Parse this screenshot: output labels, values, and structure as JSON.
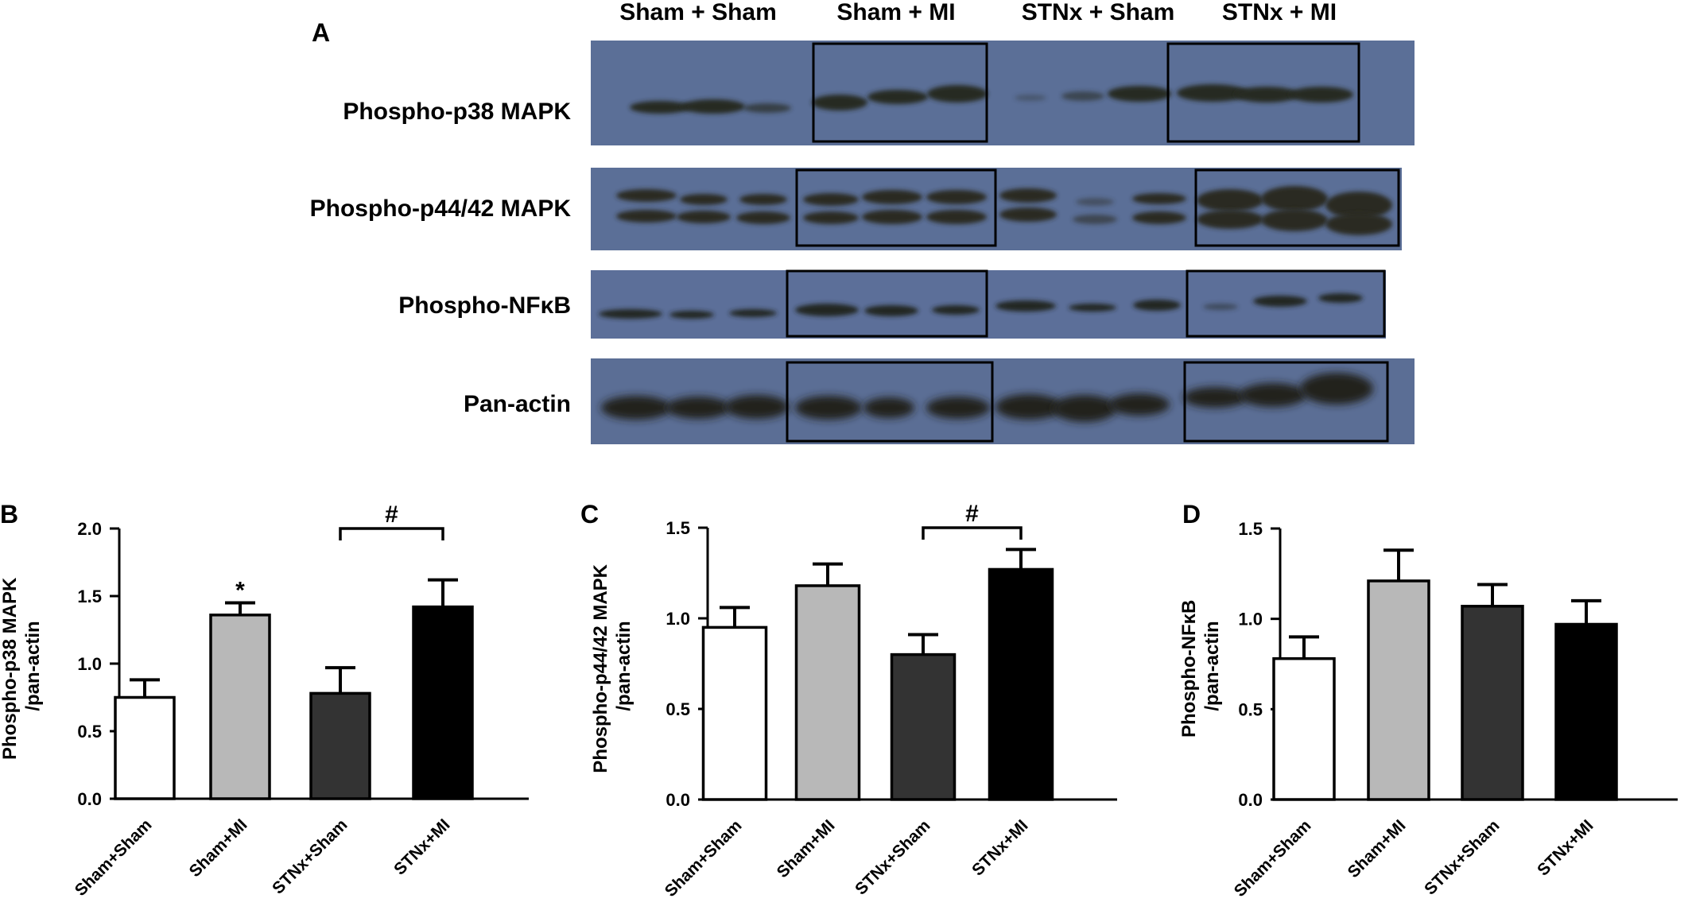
{
  "panel_a": {
    "letter": "A",
    "groups": [
      "Sham + Sham",
      "Sham + MI",
      "STNx + Sham",
      "STNx + MI"
    ],
    "rows": [
      {
        "label": "Phospho-p38 MAPK"
      },
      {
        "label": "Phospho-p44/42 MAPK"
      },
      {
        "label": "Phospho-NFκB"
      },
      {
        "label": "Pan-actin"
      }
    ],
    "colors": {
      "membrane": "#5b6f97",
      "band": "#262a22"
    }
  },
  "chart_data": [
    {
      "panel": "B",
      "type": "bar",
      "categories": [
        "Sham+Sham",
        "Sham+MI",
        "STNx+Sham",
        "STNx+MI"
      ],
      "values": [
        0.75,
        1.36,
        0.78,
        1.42
      ],
      "errors": [
        0.13,
        0.09,
        0.19,
        0.2
      ],
      "colors": [
        "#ffffff",
        "#b8b8b8",
        "#333333",
        "#000000"
      ],
      "ylabel": "Phospho-p38 MAPK\n/pan-actin",
      "ylim": [
        0,
        2.0
      ],
      "yticks": [
        "0.0",
        "0.5",
        "1.0",
        "1.5",
        "2.0"
      ],
      "annotations": {
        "star": {
          "category": 1,
          "text": "*"
        },
        "bracket": {
          "from": 2,
          "to": 3,
          "text": "#"
        }
      }
    },
    {
      "panel": "C",
      "type": "bar",
      "categories": [
        "Sham+Sham",
        "Sham+MI",
        "STNx+Sham",
        "STNx+MI"
      ],
      "values": [
        0.95,
        1.18,
        0.8,
        1.27
      ],
      "errors": [
        0.11,
        0.12,
        0.11,
        0.11
      ],
      "colors": [
        "#ffffff",
        "#b8b8b8",
        "#333333",
        "#000000"
      ],
      "ylabel": "Phospho-p44/42 MAPK\n/pan-actin",
      "ylim": [
        0,
        1.5
      ],
      "yticks": [
        "0.0",
        "0.5",
        "1.0",
        "1.5"
      ],
      "annotations": {
        "bracket": {
          "from": 2,
          "to": 3,
          "text": "#"
        }
      }
    },
    {
      "panel": "D",
      "type": "bar",
      "categories": [
        "Sham+Sham",
        "Sham+MI",
        "STNx+Sham",
        "STNx+MI"
      ],
      "values": [
        0.78,
        1.21,
        1.07,
        0.97
      ],
      "errors": [
        0.12,
        0.17,
        0.12,
        0.13
      ],
      "colors": [
        "#ffffff",
        "#b8b8b8",
        "#333333",
        "#000000"
      ],
      "ylabel": "Phospho-NFκB\n/pan-actin",
      "ylim": [
        0,
        1.5
      ],
      "yticks": [
        "0.0",
        "0.5",
        "1.0",
        "1.5"
      ],
      "annotations": {}
    }
  ]
}
